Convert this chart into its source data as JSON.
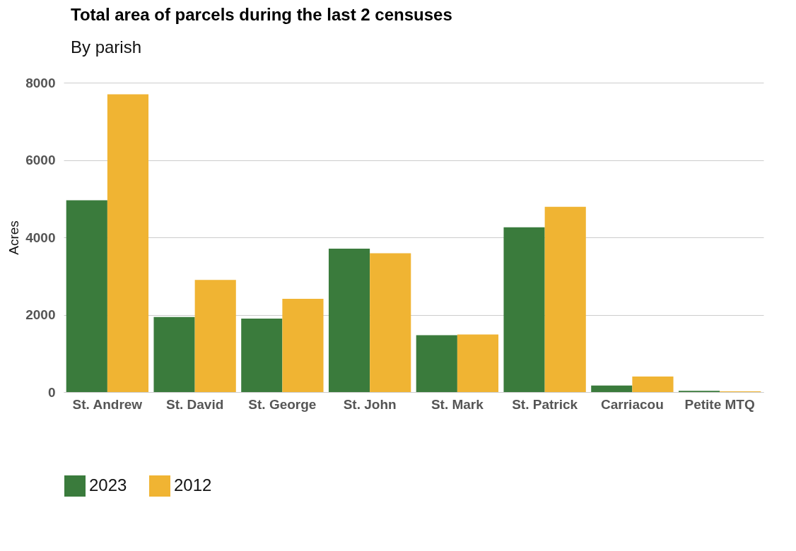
{
  "chart_data": {
    "type": "bar",
    "title": "Total area of parcels during the last 2 censuses",
    "subtitle": "By parish",
    "ylabel": "Acres",
    "categories": [
      "St. Andrew",
      "St. David",
      "St. George",
      "St. John",
      "St. Mark",
      "St. Patrick",
      "Carriacou",
      "Petite MTQ"
    ],
    "series": [
      {
        "name": "2023",
        "color": "#3a7b3c",
        "values": [
          4960,
          1940,
          1900,
          3710,
          1470,
          4260,
          170,
          30
        ]
      },
      {
        "name": "2012",
        "color": "#f0b433",
        "values": [
          7700,
          2900,
          2410,
          3590,
          1490,
          4790,
          400,
          20
        ]
      }
    ],
    "ylim": [
      0,
      8000
    ],
    "yticks": [
      0,
      2000,
      4000,
      6000,
      8000
    ],
    "grid": "y",
    "legend": "bottom"
  }
}
